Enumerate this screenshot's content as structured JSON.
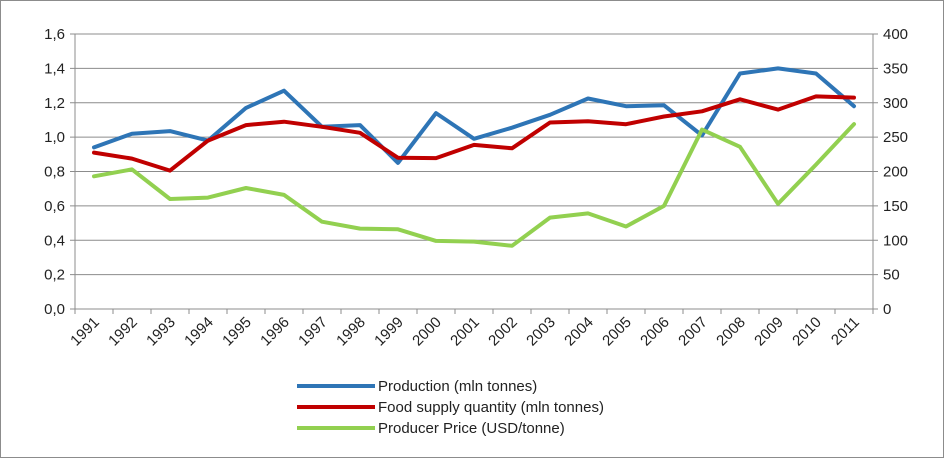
{
  "chart_data": {
    "type": "line",
    "title": "",
    "categories": [
      "1991",
      "1992",
      "1993",
      "1994",
      "1995",
      "1996",
      "1997",
      "1998",
      "1999",
      "2000",
      "2001",
      "2002",
      "2003",
      "2004",
      "2005",
      "2006",
      "2007",
      "2008",
      "2009",
      "2010",
      "2011"
    ],
    "y_left": {
      "min": 0,
      "max": 1.6,
      "step": 0.2,
      "tick_labels": [
        "0,0",
        "0,2",
        "0,4",
        "0,6",
        "0,8",
        "1,0",
        "1,2",
        "1,4",
        "1,6"
      ]
    },
    "y_right": {
      "min": 0,
      "max": 400,
      "step": 50,
      "tick_labels": [
        "0",
        "50",
        "100",
        "150",
        "200",
        "250",
        "300",
        "350",
        "400"
      ]
    },
    "grid": "horizontal",
    "legend_position": "bottom",
    "series": [
      {
        "name": "Production (mln tonnes)",
        "axis": "left",
        "color": "#2E75B6",
        "values": [
          0.94,
          1.02,
          1.035,
          0.98,
          1.17,
          1.27,
          1.06,
          1.07,
          0.85,
          1.14,
          0.99,
          1.055,
          1.13,
          1.225,
          1.18,
          1.185,
          1.01,
          1.37,
          1.4,
          1.37,
          1.18
        ]
      },
      {
        "name": "Food supply quantity (mln tonnes)",
        "axis": "left",
        "color": "#C00000",
        "values": [
          0.91,
          0.875,
          0.805,
          0.98,
          1.07,
          1.09,
          1.06,
          1.025,
          0.88,
          0.878,
          0.955,
          0.935,
          1.085,
          1.092,
          1.075,
          1.12,
          1.15,
          1.22,
          1.16,
          1.237,
          1.23
        ]
      },
      {
        "name": "Producer Price (USD/tonne)",
        "axis": "right",
        "color": "#92D050",
        "values": [
          193,
          203,
          160,
          162,
          176,
          166,
          127,
          117,
          116,
          99,
          98,
          92,
          133,
          139,
          120,
          150,
          261,
          236,
          153,
          210,
          269
        ]
      }
    ]
  }
}
